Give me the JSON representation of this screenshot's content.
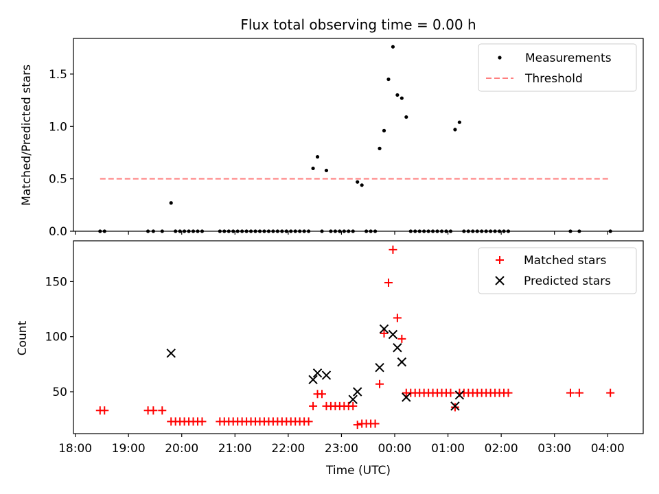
{
  "chart_data": [
    {
      "type": "scatter",
      "title": "Flux total observing time = 0.00 h",
      "xlabel": "",
      "ylabel": "Matched/Predicted stars",
      "ylim": [
        0,
        1.84
      ],
      "yticks": [
        "0.0",
        "0.5",
        "1.0",
        "1.5"
      ],
      "ytick_values": [
        0,
        0.5,
        1.0,
        1.5
      ],
      "legend_position": "top-right",
      "series": [
        {
          "name": "Measurements",
          "marker": "dot",
          "color": "#000000",
          "x": [
            "18:28",
            "18:33",
            "19:22",
            "19:28",
            "19:38",
            "19:48",
            "19:53",
            "19:58",
            "20:03",
            "20:08",
            "20:13",
            "20:18",
            "20:23",
            "20:43",
            "20:48",
            "20:53",
            "20:58",
            "21:03",
            "21:08",
            "21:13",
            "21:18",
            "21:23",
            "21:28",
            "21:33",
            "21:38",
            "21:43",
            "21:48",
            "21:53",
            "21:58",
            "22:03",
            "22:08",
            "22:13",
            "22:18",
            "22:23",
            "22:28",
            "22:33",
            "22:38",
            "22:43",
            "22:48",
            "22:53",
            "22:58",
            "23:03",
            "23:08",
            "23:13",
            "23:18",
            "23:23",
            "23:28",
            "23:33",
            "23:38",
            "23:43",
            "23:48",
            "23:53",
            "23:58",
            "00:03",
            "00:08",
            "00:13",
            "00:18",
            "00:23",
            "00:28",
            "00:33",
            "00:38",
            "00:43",
            "00:48",
            "00:53",
            "00:58",
            "01:03",
            "01:08",
            "01:13",
            "01:18",
            "01:23",
            "01:28",
            "01:33",
            "01:38",
            "01:43",
            "01:48",
            "01:53",
            "01:58",
            "02:03",
            "02:08",
            "03:18",
            "03:28",
            "04:03"
          ],
          "values": [
            0,
            0,
            0,
            0,
            0,
            0.27,
            0,
            0,
            0,
            0,
            0,
            0,
            0,
            0,
            0,
            0,
            0,
            0,
            0,
            0,
            0,
            0,
            0,
            0,
            0,
            0,
            0,
            0,
            0,
            0,
            0,
            0,
            0,
            0,
            0.6,
            0.71,
            0,
            0.58,
            0,
            0,
            0,
            0,
            0,
            0,
            0.47,
            0.44,
            0,
            0,
            0,
            0.79,
            0.96,
            1.45,
            1.76,
            1.3,
            1.27,
            1.09,
            0,
            0,
            0,
            0,
            0,
            0,
            0,
            0,
            0,
            0,
            0.97,
            1.04,
            0,
            0,
            0,
            0,
            0,
            0,
            0,
            0,
            0,
            0,
            0,
            0,
            0,
            0
          ]
        },
        {
          "name": "Threshold",
          "marker": "dashed-line",
          "color": "#ff7f7f",
          "x": [
            "18:28",
            "04:03"
          ],
          "values": [
            0.5,
            0.5
          ]
        }
      ]
    },
    {
      "type": "scatter",
      "title": "",
      "xlabel": "Time (UTC)",
      "ylabel": "Count",
      "ylim": [
        12,
        187
      ],
      "yticks": [
        "50",
        "100",
        "150"
      ],
      "ytick_values": [
        50,
        100,
        150
      ],
      "xticks": [
        "18:00",
        "19:00",
        "20:00",
        "21:00",
        "22:00",
        "23:00",
        "00:00",
        "01:00",
        "02:00",
        "03:00",
        "04:00"
      ],
      "xtick_minutes": [
        0,
        60,
        120,
        180,
        240,
        300,
        360,
        420,
        480,
        540,
        600
      ],
      "xlim_minutes": [
        -2,
        640
      ],
      "legend_position": "top-right",
      "series": [
        {
          "name": "Matched stars",
          "marker": "plus",
          "color": "#ff0000",
          "x": [
            "18:28",
            "18:33",
            "19:22",
            "19:28",
            "19:38",
            "19:48",
            "19:53",
            "19:58",
            "20:03",
            "20:08",
            "20:13",
            "20:18",
            "20:23",
            "20:43",
            "20:48",
            "20:53",
            "20:58",
            "21:03",
            "21:08",
            "21:13",
            "21:18",
            "21:23",
            "21:28",
            "21:33",
            "21:38",
            "21:43",
            "21:48",
            "21:53",
            "21:58",
            "22:03",
            "22:08",
            "22:13",
            "22:18",
            "22:23",
            "22:28",
            "22:33",
            "22:38",
            "22:43",
            "22:48",
            "22:53",
            "22:58",
            "23:03",
            "23:08",
            "23:13",
            "23:18",
            "23:23",
            "23:28",
            "23:33",
            "23:38",
            "23:43",
            "23:48",
            "23:53",
            "23:58",
            "00:03",
            "00:08",
            "00:13",
            "00:18",
            "00:23",
            "00:28",
            "00:33",
            "00:38",
            "00:43",
            "00:48",
            "00:53",
            "00:58",
            "01:03",
            "01:08",
            "01:13",
            "01:18",
            "01:23",
            "01:28",
            "01:33",
            "01:38",
            "01:43",
            "01:48",
            "01:53",
            "01:58",
            "02:03",
            "02:08",
            "03:18",
            "03:28",
            "04:03"
          ],
          "values": [
            33,
            33,
            33,
            33,
            33,
            23,
            23,
            23,
            23,
            23,
            23,
            23,
            23,
            23,
            23,
            23,
            23,
            23,
            23,
            23,
            23,
            23,
            23,
            23,
            23,
            23,
            23,
            23,
            23,
            23,
            23,
            23,
            23,
            23,
            37,
            48,
            48,
            37,
            37,
            37,
            37,
            37,
            37,
            37,
            20,
            21,
            21,
            21,
            21,
            57,
            103,
            149,
            179,
            117,
            98,
            49,
            49,
            49,
            49,
            49,
            49,
            49,
            49,
            49,
            49,
            49,
            36,
            49,
            49,
            49,
            49,
            49,
            49,
            49,
            49,
            49,
            49,
            49,
            49,
            49,
            49,
            49
          ]
        },
        {
          "name": "Predicted stars",
          "marker": "x",
          "color": "#000000",
          "x": [
            "19:48",
            "22:28",
            "22:33",
            "22:43",
            "23:13",
            "23:18",
            "23:43",
            "23:48",
            "23:58",
            "00:03",
            "00:08",
            "00:13",
            "01:08",
            "01:13"
          ],
          "values": [
            85,
            61,
            67,
            65,
            43,
            50,
            72,
            107,
            102,
            90,
            77,
            45,
            37,
            47
          ]
        }
      ]
    }
  ]
}
